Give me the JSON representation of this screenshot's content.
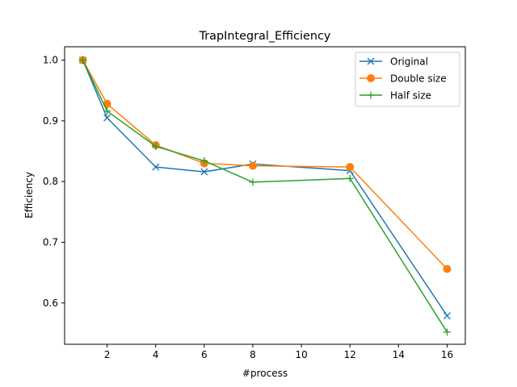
{
  "chart_data": {
    "type": "line",
    "title": "TrapIntegral_Efficiency",
    "xlabel": "#process",
    "ylabel": "Efficiency",
    "x": [
      1,
      2,
      4,
      6,
      8,
      12,
      16
    ],
    "xlim": [
      0.25,
      16.75
    ],
    "ylim": [
      0.532,
      1.022
    ],
    "xticks": [
      2,
      4,
      6,
      8,
      10,
      12,
      14,
      16
    ],
    "yticks": [
      0.6,
      0.7,
      0.8,
      0.9,
      1.0
    ],
    "ytick_labels": [
      "0.6",
      "0.7",
      "0.8",
      "0.9",
      "1.0"
    ],
    "grid": false,
    "legend_position": "top-right",
    "series": [
      {
        "name": "Original",
        "color": "#1f77b4",
        "marker": "x",
        "values": [
          1.0,
          0.905,
          0.824,
          0.816,
          0.829,
          0.818,
          0.579
        ]
      },
      {
        "name": "Double size",
        "color": "#ff7f0e",
        "marker": "circle",
        "values": [
          1.0,
          0.928,
          0.86,
          0.83,
          0.826,
          0.824,
          0.656
        ]
      },
      {
        "name": "Half size",
        "color": "#2ca02c",
        "marker": "plus",
        "values": [
          1.0,
          0.916,
          0.858,
          0.834,
          0.799,
          0.805,
          0.552
        ]
      }
    ]
  }
}
